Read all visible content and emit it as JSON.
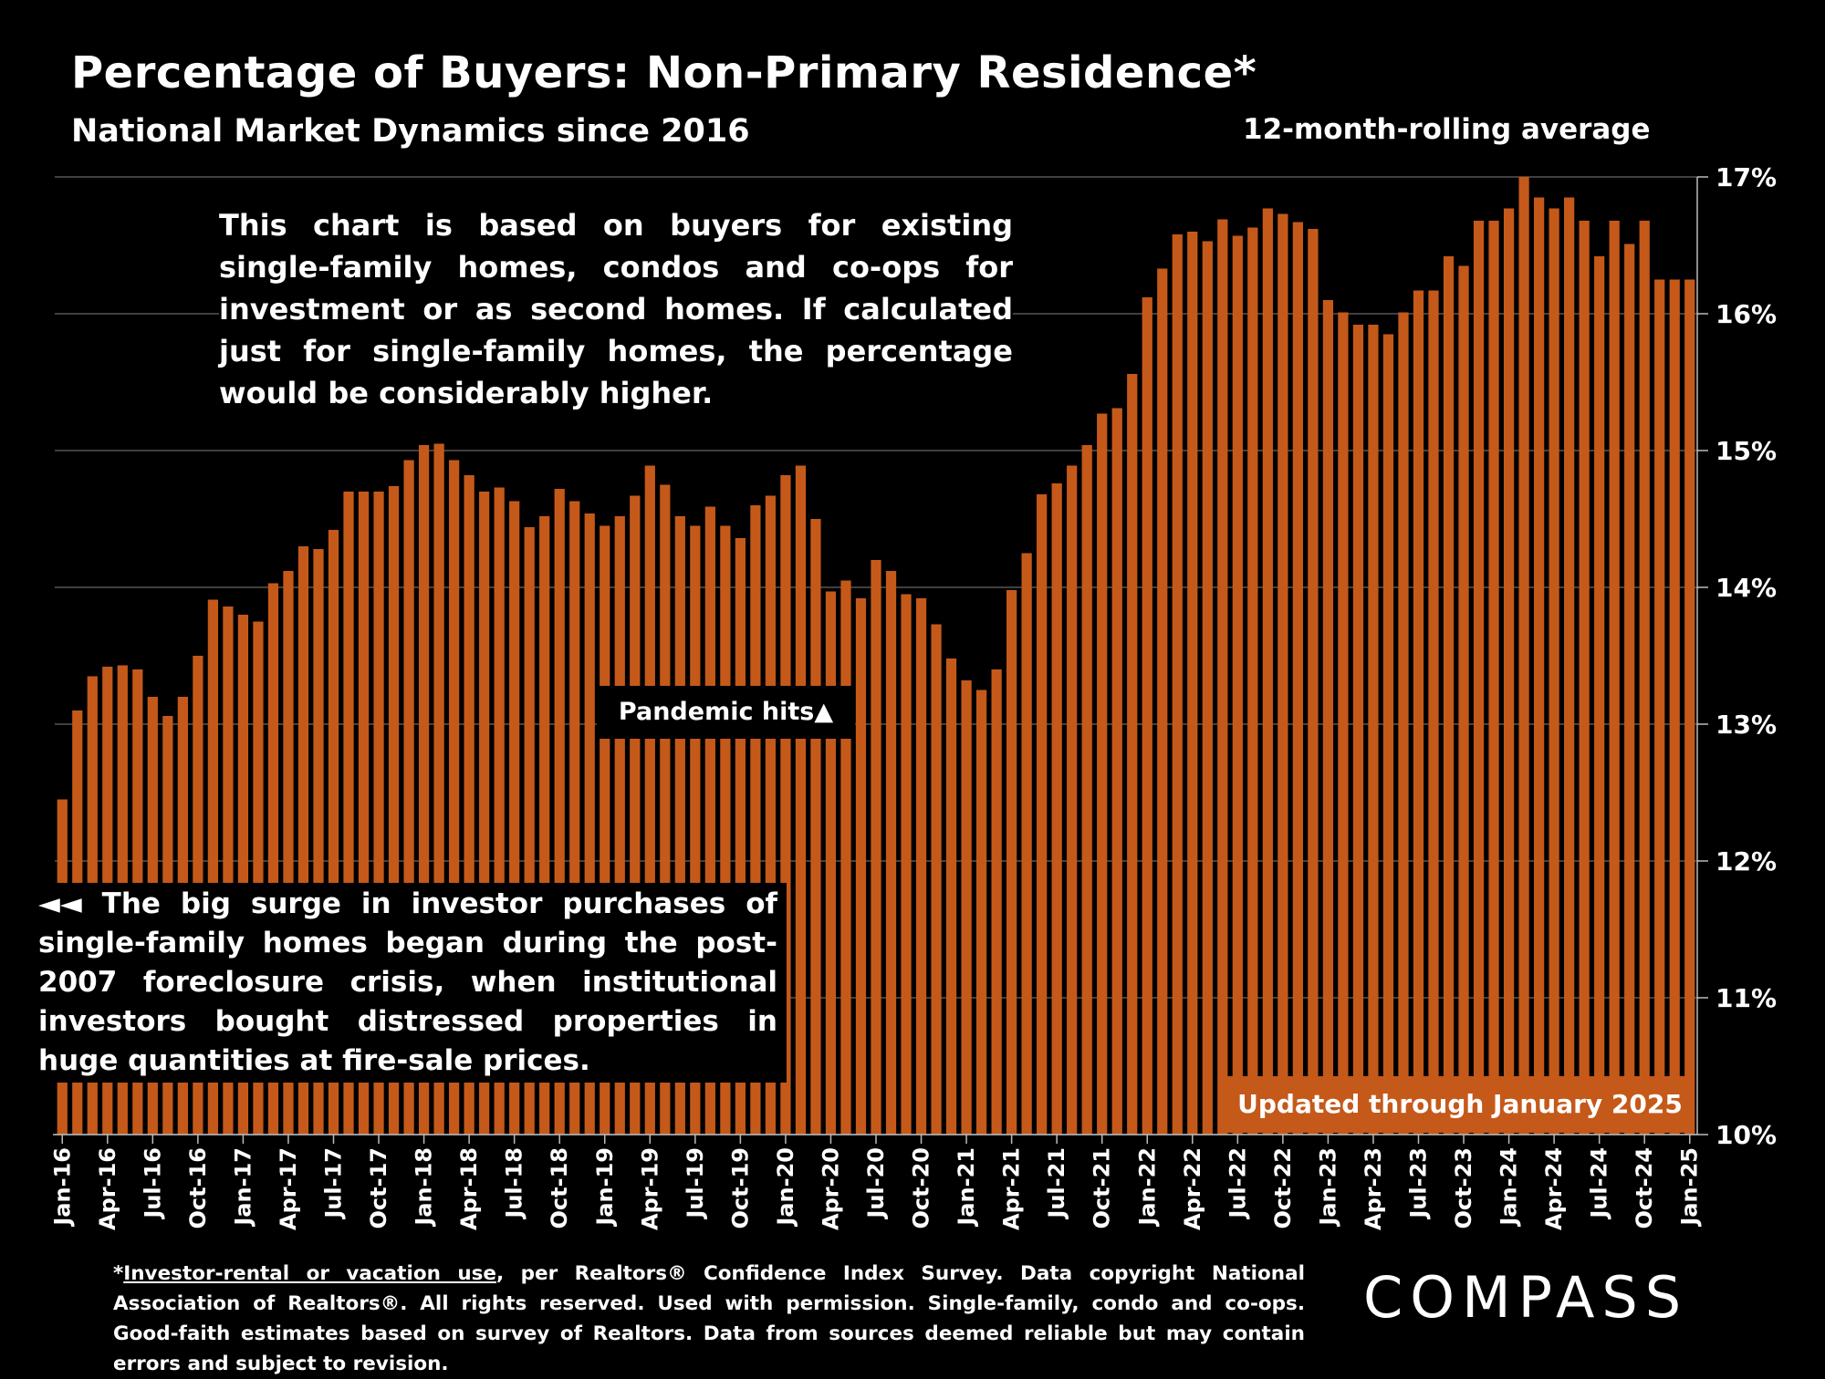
{
  "title": "Percentage of Buyers: Non-Primary Residence*",
  "subtitle": "National Market Dynamics since 2016",
  "rolling_label": "12-month-rolling average",
  "note_top": "This chart is based on buyers for existing single-family homes, condos and co-ops for investment or as second homes. If calculated just for single-family homes, the percentage would be considerably higher.",
  "note_left": "◄◄ The big surge in investor purchases of single-family homes began during the post-2007 foreclosure crisis, when institutional investors bought distressed properties in huge quantities at fire-sale prices.",
  "pandemic_label": "Pandemic hits▲",
  "updated_label": "Updated through January 2025",
  "footnote": {
    "lead": "*",
    "underlined": "Investor-rental or vacation use",
    "rest": ", per Realtors® Confidence Index Survey. Data copyright National Association of Realtors®. All rights reserved. Used with permission. Single-family, condo and co-ops. Good-faith estimates based on survey of Realtors. Data from sources deemed reliable but may contain errors and subject to revision."
  },
  "logo": "COMPASS",
  "colors": {
    "bar": "#c5591a",
    "background": "#000000",
    "grid": "#555555",
    "text": "#ffffff"
  },
  "chart_data": {
    "type": "bar",
    "title": "Percentage of Buyers: Non-Primary Residence*",
    "subtitle": "National Market Dynamics since 2016",
    "ylabel": "",
    "xlabel": "",
    "ylim": [
      10,
      17
    ],
    "yticks": [
      "10%",
      "11%",
      "12%",
      "13%",
      "14%",
      "15%",
      "16%",
      "17%"
    ],
    "grid": true,
    "y_axis_position": "right",
    "xtick_labels": [
      "Jan-16",
      "Apr-16",
      "Jul-16",
      "Oct-16",
      "Jan-17",
      "Apr-17",
      "Jul-17",
      "Oct-17",
      "Jan-18",
      "Apr-18",
      "Jul-18",
      "Oct-18",
      "Jan-19",
      "Apr-19",
      "Jul-19",
      "Oct-19",
      "Jan-20",
      "Apr-20",
      "Jul-20",
      "Oct-20",
      "Jan-21",
      "Apr-21",
      "Jul-21",
      "Oct-21",
      "Jan-22",
      "Apr-22",
      "Jul-22",
      "Oct-22",
      "Jan-23",
      "Apr-23",
      "Jul-23",
      "Oct-23",
      "Jan-24",
      "Apr-24",
      "Jul-24",
      "Oct-24",
      "Jan-25"
    ],
    "values": [
      12.45,
      13.1,
      13.35,
      13.42,
      13.43,
      13.4,
      13.2,
      13.06,
      13.2,
      13.5,
      13.91,
      13.86,
      13.8,
      13.75,
      14.03,
      14.12,
      14.3,
      14.28,
      14.42,
      14.7,
      14.7,
      14.7,
      14.74,
      14.93,
      15.04,
      15.05,
      14.93,
      14.82,
      14.7,
      14.73,
      14.63,
      14.44,
      14.52,
      14.72,
      14.63,
      14.54,
      14.45,
      14.52,
      14.67,
      14.89,
      14.75,
      14.52,
      14.45,
      14.59,
      14.45,
      14.36,
      14.6,
      14.67,
      14.82,
      14.89,
      14.5,
      13.97,
      14.05,
      13.92,
      14.2,
      14.12,
      13.95,
      13.92,
      13.73,
      13.48,
      13.32,
      13.25,
      13.4,
      13.98,
      14.25,
      14.68,
      14.76,
      14.89,
      15.04,
      15.27,
      15.31,
      15.56,
      16.12,
      16.33,
      16.58,
      16.6,
      16.53,
      16.69,
      16.57,
      16.63,
      16.77,
      16.73,
      16.67,
      16.62,
      16.1,
      16.01,
      15.92,
      15.92,
      15.85,
      16.01,
      16.17,
      16.17,
      16.42,
      16.35,
      16.68,
      16.68,
      16.77,
      17.0,
      16.85,
      16.77,
      16.85,
      16.68,
      16.42,
      16.68,
      16.51,
      16.68,
      16.25,
      16.25,
      16.25
    ]
  }
}
